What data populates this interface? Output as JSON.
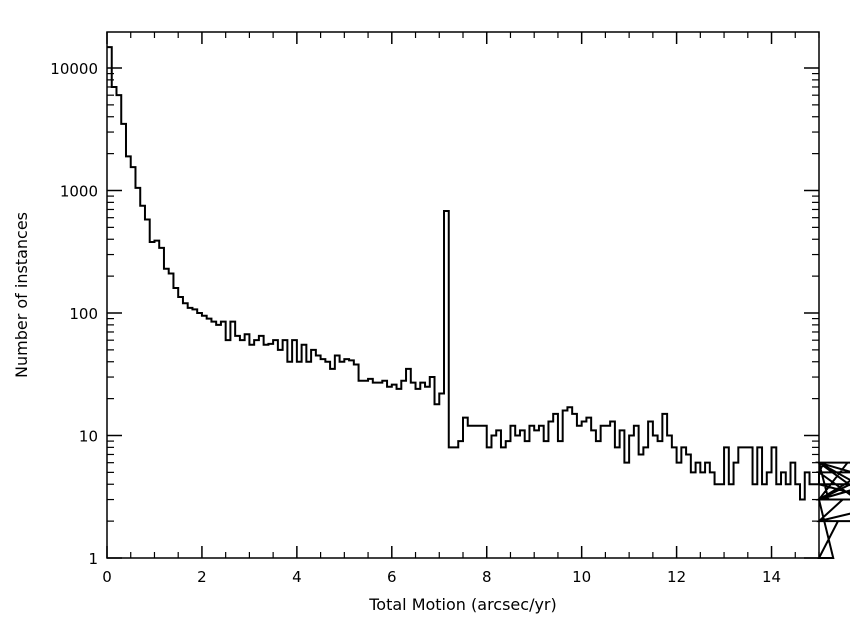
{
  "chart_data": {
    "type": "histogram",
    "xlabel": "Total Motion (arcsec/yr)",
    "ylabel": "Number of instances",
    "xlim": [
      0,
      15
    ],
    "ylim": [
      1,
      20000
    ],
    "yscale": "log",
    "bin_width": 0.1,
    "x_ticks": [
      0,
      2,
      4,
      6,
      8,
      10,
      12,
      14
    ],
    "y_ticks": [
      1,
      10,
      100,
      1000,
      10000
    ],
    "x_tick_labels": [
      "0",
      "2",
      "4",
      "6",
      "8",
      "10",
      "12",
      "14"
    ],
    "y_tick_labels": [
      "1",
      "10",
      "100",
      "1000",
      "10000"
    ],
    "line_color": "#000000",
    "grid": false,
    "values": [
      14800,
      7000,
      6000,
      3500,
      1900,
      1550,
      1050,
      750,
      580,
      380,
      390,
      340,
      230,
      210,
      160,
      135,
      120,
      110,
      107,
      100,
      95,
      90,
      85,
      80,
      85,
      60,
      85,
      65,
      60,
      67,
      55,
      60,
      65,
      55,
      56,
      60,
      50,
      60,
      40,
      60,
      40,
      55,
      40,
      50,
      45,
      42,
      40,
      35,
      45,
      40,
      42,
      41,
      38,
      28,
      28,
      29,
      27,
      27,
      28,
      25,
      26,
      24,
      28,
      35,
      27,
      24,
      27,
      25,
      30,
      18,
      22,
      680,
      8,
      8,
      9,
      14,
      12,
      12,
      12,
      12,
      8,
      10,
      11,
      8,
      9,
      12,
      10,
      11,
      9,
      12,
      11,
      12,
      9,
      13,
      15,
      9,
      16,
      17,
      15,
      12,
      13,
      14,
      11,
      9,
      12,
      12,
      13,
      8,
      11,
      6,
      10,
      12,
      7,
      8,
      13,
      10,
      9,
      15,
      10,
      8,
      6,
      8,
      7,
      5,
      6,
      5,
      6,
      5,
      4,
      4,
      8,
      4,
      6,
      8,
      8,
      8,
      4,
      8,
      4,
      5,
      8,
      4,
      5,
      4,
      6,
      4,
      3,
      5,
      4,
      4,
      5,
      6,
      3,
      1,
      2,
      3,
      6,
      5,
      3,
      3,
      3,
      4,
      3,
      6,
      3,
      3,
      6,
      2,
      2,
      3,
      5
    ]
  }
}
